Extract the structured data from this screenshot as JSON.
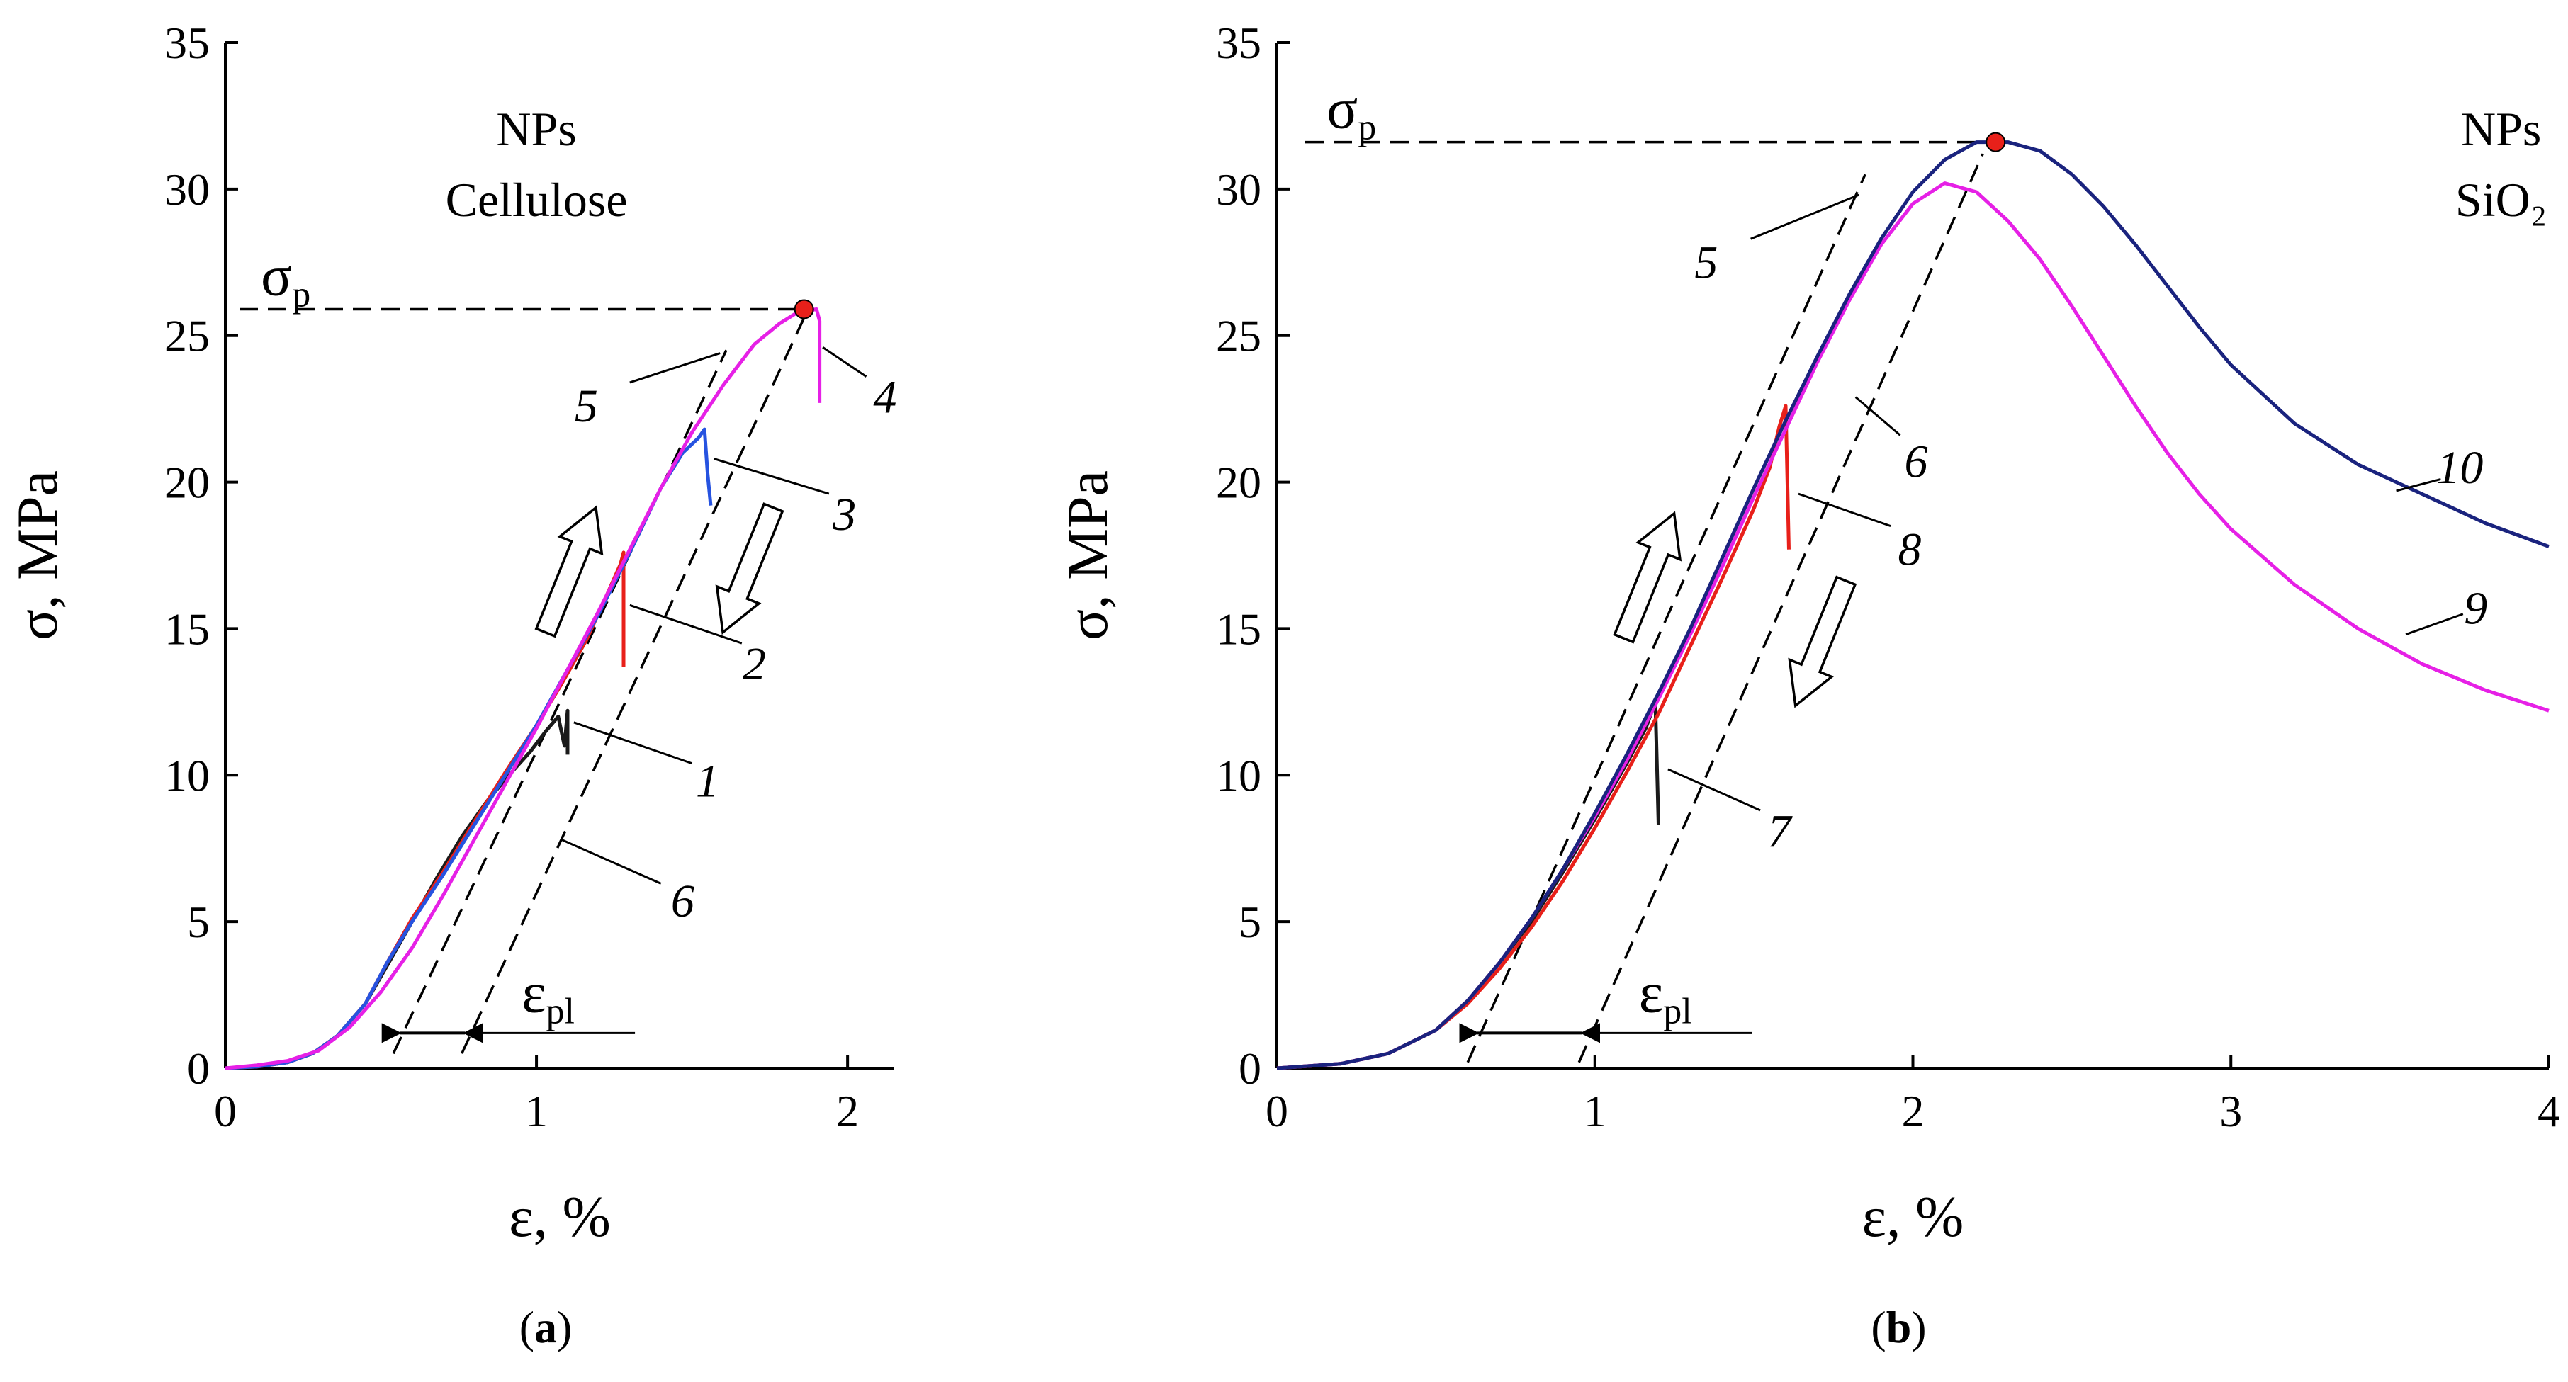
{
  "chart_data": [
    {
      "id": "a",
      "type": "line",
      "caption": "a",
      "xlabel": "ε, %",
      "ylabel": "σ, MPa",
      "xlim": [
        0,
        2.15
      ],
      "ylim": [
        0,
        35
      ],
      "xticks": [
        0,
        1,
        2
      ],
      "yticks": [
        0,
        5,
        10,
        15,
        20,
        25,
        30,
        35
      ],
      "title_lines": [
        "NPs",
        "Cellulose"
      ],
      "peak": {
        "label": "σ",
        "sub": "p",
        "x": 1.86,
        "y": 25.9
      },
      "eps": {
        "label": "ε",
        "sub": "pl",
        "x1": 0.56,
        "x2": 0.77,
        "y": 1.2
      },
      "arrows": [
        {
          "dir": "up",
          "x": 1.11,
          "y": 17.0
        },
        {
          "dir": "down",
          "x": 1.68,
          "y": 17.0
        }
      ],
      "guides": [
        {
          "points": [
            [
              0.54,
              0.5
            ],
            [
              1.61,
              24.5
            ]
          ]
        },
        {
          "points": [
            [
              0.76,
              0.5
            ],
            [
              1.86,
              25.6
            ]
          ]
        }
      ],
      "series": [
        {
          "name": "1",
          "color": "#1a1a1a",
          "points": [
            [
              0,
              0
            ],
            [
              0.1,
              0.05
            ],
            [
              0.2,
              0.2
            ],
            [
              0.28,
              0.5
            ],
            [
              0.36,
              1.1
            ],
            [
              0.45,
              2.2
            ],
            [
              0.52,
              3.5
            ],
            [
              0.6,
              5.0
            ],
            [
              0.68,
              6.5
            ],
            [
              0.76,
              7.9
            ],
            [
              0.84,
              9.1
            ],
            [
              0.92,
              10.1
            ],
            [
              0.98,
              10.8
            ],
            [
              1.03,
              11.5
            ],
            [
              1.07,
              12.0
            ],
            [
              1.09,
              11.0
            ],
            [
              1.1,
              12.2
            ],
            [
              1.1,
              10.7
            ]
          ]
        },
        {
          "name": "2",
          "color": "#e8201a",
          "points": [
            [
              0,
              0
            ],
            [
              0.1,
              0.05
            ],
            [
              0.2,
              0.2
            ],
            [
              0.28,
              0.5
            ],
            [
              0.36,
              1.1
            ],
            [
              0.45,
              2.2
            ],
            [
              0.52,
              3.6
            ],
            [
              0.6,
              5.1
            ],
            [
              0.7,
              6.7
            ],
            [
              0.8,
              8.4
            ],
            [
              0.9,
              10.1
            ],
            [
              1.0,
              11.7
            ],
            [
              1.08,
              13.1
            ],
            [
              1.16,
              14.6
            ],
            [
              1.22,
              16.0
            ],
            [
              1.27,
              17.2
            ],
            [
              1.28,
              17.6
            ],
            [
              1.28,
              13.7
            ]
          ]
        },
        {
          "name": "3",
          "color": "#2653e0",
          "points": [
            [
              0,
              0
            ],
            [
              0.1,
              0.05
            ],
            [
              0.2,
              0.2
            ],
            [
              0.28,
              0.5
            ],
            [
              0.36,
              1.1
            ],
            [
              0.45,
              2.2
            ],
            [
              0.52,
              3.6
            ],
            [
              0.6,
              5.0
            ],
            [
              0.7,
              6.6
            ],
            [
              0.8,
              8.3
            ],
            [
              0.9,
              10.0
            ],
            [
              1.0,
              11.7
            ],
            [
              1.1,
              13.6
            ],
            [
              1.2,
              15.5
            ],
            [
              1.3,
              17.6
            ],
            [
              1.4,
              19.8
            ],
            [
              1.47,
              21.0
            ],
            [
              1.52,
              21.5
            ],
            [
              1.54,
              21.8
            ],
            [
              1.55,
              20.3
            ],
            [
              1.56,
              19.2
            ]
          ]
        },
        {
          "name": "4",
          "color": "#e620e6",
          "points": [
            [
              0,
              0
            ],
            [
              0.1,
              0.1
            ],
            [
              0.2,
              0.25
            ],
            [
              0.3,
              0.6
            ],
            [
              0.4,
              1.4
            ],
            [
              0.5,
              2.6
            ],
            [
              0.6,
              4.1
            ],
            [
              0.7,
              5.9
            ],
            [
              0.8,
              7.8
            ],
            [
              0.9,
              9.7
            ],
            [
              1.0,
              11.6
            ],
            [
              1.1,
              13.6
            ],
            [
              1.2,
              15.6
            ],
            [
              1.3,
              17.7
            ],
            [
              1.4,
              19.8
            ],
            [
              1.5,
              21.7
            ],
            [
              1.6,
              23.3
            ],
            [
              1.7,
              24.7
            ],
            [
              1.78,
              25.4
            ],
            [
              1.84,
              25.8
            ],
            [
              1.9,
              25.9
            ],
            [
              1.91,
              25.5
            ],
            [
              1.91,
              22.7
            ]
          ]
        }
      ],
      "labels": [
        {
          "text": "1",
          "x": 1.55,
          "y": 9.8,
          "lx1": 1.12,
          "ly1": 11.8,
          "lx2": 1.5,
          "ly2": 10.4
        },
        {
          "text": "2",
          "x": 1.7,
          "y": 13.8,
          "lx1": 1.3,
          "ly1": 15.8,
          "lx2": 1.66,
          "ly2": 14.5
        },
        {
          "text": "3",
          "x": 1.99,
          "y": 18.9,
          "lx1": 1.57,
          "ly1": 20.8,
          "lx2": 1.94,
          "ly2": 19.6
        },
        {
          "text": "4",
          "x": 2.12,
          "y": 22.9,
          "lx1": 1.92,
          "ly1": 24.6,
          "lx2": 2.06,
          "ly2": 23.6
        },
        {
          "text": "5",
          "x": 1.16,
          "y": 22.6,
          "lx1": 1.3,
          "ly1": 23.4,
          "lx2": 1.59,
          "ly2": 24.4
        },
        {
          "text": "6",
          "x": 1.47,
          "y": 5.7,
          "lx1": 1.08,
          "ly1": 7.8,
          "lx2": 1.4,
          "ly2": 6.3
        }
      ]
    },
    {
      "id": "b",
      "type": "line",
      "caption": "b",
      "xlabel": "ε, %",
      "ylabel": "σ, MPa",
      "xlim": [
        0,
        4
      ],
      "ylim": [
        0,
        35
      ],
      "xticks": [
        0,
        1,
        2,
        3,
        4
      ],
      "yticks": [
        0,
        5,
        10,
        15,
        20,
        25,
        30,
        35
      ],
      "title_lines": [
        "NPs",
        "SiO₂"
      ],
      "peak": {
        "label": "σ",
        "sub": "p",
        "x": 2.26,
        "y": 31.6
      },
      "eps": {
        "label": "ε",
        "sub": "pl",
        "x1": 0.63,
        "x2": 0.96,
        "y": 1.2
      },
      "arrows": [
        {
          "dir": "up",
          "x": 1.17,
          "y": 16.8
        },
        {
          "dir": "down",
          "x": 1.71,
          "y": 14.5
        }
      ],
      "guides": [
        {
          "points": [
            [
              0.6,
              0.2
            ],
            [
              1.85,
              30.5
            ]
          ]
        },
        {
          "points": [
            [
              0.95,
              0.2
            ],
            [
              2.22,
              31.2
            ]
          ]
        }
      ],
      "series": [
        {
          "name": "7",
          "color": "#1a1a1a",
          "points": [
            [
              0,
              0
            ],
            [
              0.2,
              0.15
            ],
            [
              0.35,
              0.5
            ],
            [
              0.5,
              1.3
            ],
            [
              0.6,
              2.3
            ],
            [
              0.7,
              3.6
            ],
            [
              0.8,
              5.0
            ],
            [
              0.9,
              6.7
            ],
            [
              1.0,
              8.5
            ],
            [
              1.1,
              10.4
            ],
            [
              1.16,
              11.6
            ],
            [
              1.19,
              12.5
            ],
            [
              1.2,
              8.3
            ]
          ]
        },
        {
          "name": "8",
          "color": "#e8201a",
          "points": [
            [
              0,
              0
            ],
            [
              0.2,
              0.15
            ],
            [
              0.35,
              0.5
            ],
            [
              0.5,
              1.3
            ],
            [
              0.6,
              2.2
            ],
            [
              0.7,
              3.4
            ],
            [
              0.8,
              4.8
            ],
            [
              0.9,
              6.4
            ],
            [
              1.0,
              8.2
            ],
            [
              1.1,
              10.1
            ],
            [
              1.2,
              12.1
            ],
            [
              1.3,
              14.4
            ],
            [
              1.4,
              16.7
            ],
            [
              1.5,
              19.1
            ],
            [
              1.55,
              20.5
            ],
            [
              1.58,
              21.9
            ],
            [
              1.6,
              22.6
            ],
            [
              1.61,
              17.7
            ]
          ]
        },
        {
          "name": "9",
          "color": "#e620e6",
          "points": [
            [
              0,
              0
            ],
            [
              0.2,
              0.15
            ],
            [
              0.35,
              0.5
            ],
            [
              0.5,
              1.3
            ],
            [
              0.6,
              2.3
            ],
            [
              0.7,
              3.6
            ],
            [
              0.8,
              5.1
            ],
            [
              0.9,
              6.8
            ],
            [
              1.0,
              8.6
            ],
            [
              1.1,
              10.5
            ],
            [
              1.2,
              12.6
            ],
            [
              1.3,
              14.8
            ],
            [
              1.4,
              17.1
            ],
            [
              1.5,
              19.5
            ],
            [
              1.6,
              21.8
            ],
            [
              1.7,
              24.1
            ],
            [
              1.8,
              26.2
            ],
            [
              1.9,
              28.1
            ],
            [
              2.0,
              29.5
            ],
            [
              2.1,
              30.2
            ],
            [
              2.2,
              29.9
            ],
            [
              2.3,
              28.9
            ],
            [
              2.4,
              27.6
            ],
            [
              2.5,
              26.0
            ],
            [
              2.6,
              24.3
            ],
            [
              2.7,
              22.6
            ],
            [
              2.8,
              21.0
            ],
            [
              2.9,
              19.6
            ],
            [
              3.0,
              18.4
            ],
            [
              3.2,
              16.5
            ],
            [
              3.4,
              15.0
            ],
            [
              3.6,
              13.8
            ],
            [
              3.8,
              12.9
            ],
            [
              4.0,
              12.2
            ]
          ]
        },
        {
          "name": "10",
          "color": "#1a237e",
          "points": [
            [
              0,
              0
            ],
            [
              0.2,
              0.15
            ],
            [
              0.35,
              0.5
            ],
            [
              0.5,
              1.3
            ],
            [
              0.6,
              2.3
            ],
            [
              0.7,
              3.6
            ],
            [
              0.8,
              5.1
            ],
            [
              0.9,
              6.8
            ],
            [
              1.0,
              8.7
            ],
            [
              1.1,
              10.7
            ],
            [
              1.2,
              12.8
            ],
            [
              1.3,
              15.0
            ],
            [
              1.4,
              17.4
            ],
            [
              1.5,
              19.8
            ],
            [
              1.6,
              22.1
            ],
            [
              1.7,
              24.3
            ],
            [
              1.8,
              26.4
            ],
            [
              1.9,
              28.3
            ],
            [
              2.0,
              29.9
            ],
            [
              2.1,
              31.0
            ],
            [
              2.2,
              31.6
            ],
            [
              2.3,
              31.6
            ],
            [
              2.4,
              31.3
            ],
            [
              2.5,
              30.5
            ],
            [
              2.6,
              29.4
            ],
            [
              2.7,
              28.1
            ],
            [
              2.8,
              26.7
            ],
            [
              2.9,
              25.3
            ],
            [
              3.0,
              24.0
            ],
            [
              3.2,
              22.0
            ],
            [
              3.4,
              20.6
            ],
            [
              3.6,
              19.6
            ],
            [
              3.8,
              18.6
            ],
            [
              4.0,
              17.8
            ]
          ]
        }
      ],
      "labels": [
        {
          "text": "5",
          "x": 1.35,
          "y": 27.5,
          "lx1": 1.49,
          "ly1": 28.3,
          "lx2": 1.83,
          "ly2": 29.8
        },
        {
          "text": "6",
          "x": 2.01,
          "y": 20.7,
          "lx1": 1.82,
          "ly1": 22.9,
          "lx2": 1.96,
          "ly2": 21.6
        },
        {
          "text": "7",
          "x": 1.58,
          "y": 8.1,
          "lx1": 1.23,
          "ly1": 10.2,
          "lx2": 1.52,
          "ly2": 8.8
        },
        {
          "text": "8",
          "x": 1.99,
          "y": 17.7,
          "lx1": 1.64,
          "ly1": 19.6,
          "lx2": 1.93,
          "ly2": 18.5
        },
        {
          "text": "9",
          "x": 3.77,
          "y": 15.7,
          "lx1": 3.55,
          "ly1": 14.8,
          "lx2": 3.73,
          "ly2": 15.5
        },
        {
          "text": "10",
          "x": 3.72,
          "y": 20.5,
          "lx1": 3.52,
          "ly1": 19.7,
          "lx2": 3.66,
          "ly2": 20.1
        }
      ]
    }
  ]
}
